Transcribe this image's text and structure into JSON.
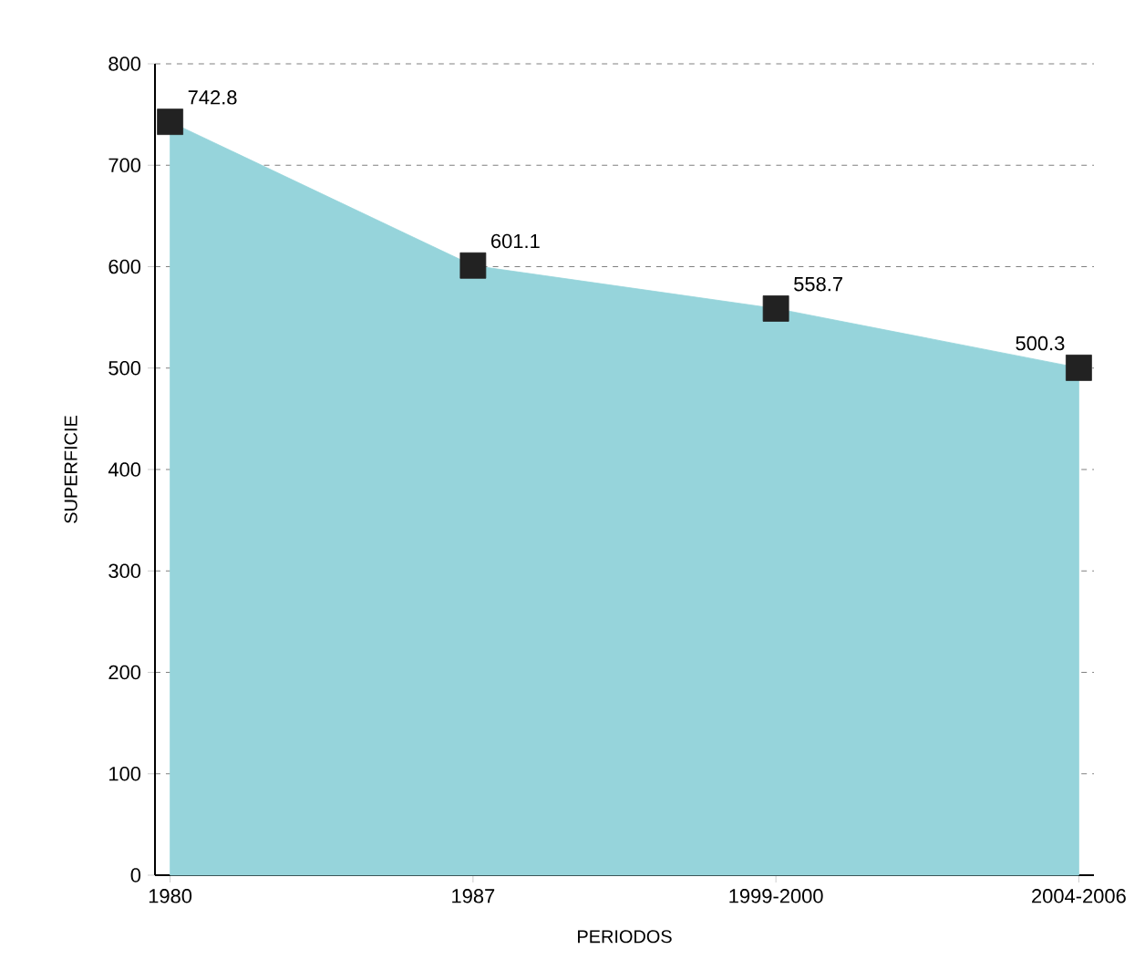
{
  "chart_data": {
    "type": "area",
    "xlabel": "PERIODOS",
    "ylabel": "SUPERFICIE",
    "categories": [
      "1980",
      "1987",
      "1999-2000",
      "2004-2006"
    ],
    "values": [
      742.8,
      601.1,
      558.7,
      500.3
    ],
    "color": "#96d4db",
    "marker": "square",
    "data_labels": true,
    "ylim": [
      0,
      800
    ],
    "yticks": [
      0,
      100,
      200,
      300,
      400,
      500,
      600,
      700,
      800
    ],
    "grid": "y"
  }
}
